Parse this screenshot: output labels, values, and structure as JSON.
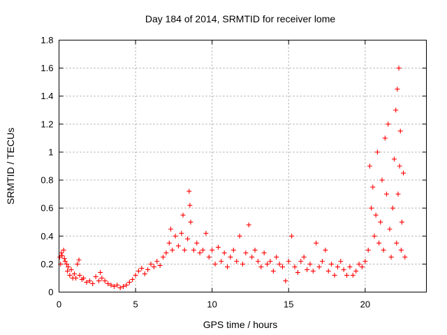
{
  "chart_data": {
    "type": "scatter",
    "title": "Day 184 of 2014, SRMTID for receiver lome",
    "xlabel": "GPS time / hours",
    "ylabel": "SRMTID / TECUs",
    "xlim": [
      0,
      24
    ],
    "ylim": [
      0,
      1.8
    ],
    "x_ticks": [
      0,
      5,
      10,
      15,
      20
    ],
    "x_tick_labels": [
      "0",
      "5",
      "10",
      "15",
      "20"
    ],
    "y_ticks": [
      0,
      0.2,
      0.4,
      0.6,
      0.8,
      1.0,
      1.2,
      1.4,
      1.6,
      1.8
    ],
    "y_tick_labels": [
      "0",
      "0.2",
      "0.4",
      "0.6",
      "0.8",
      "1",
      "1.2",
      "1.4",
      "1.6",
      "1.8"
    ],
    "grid": true,
    "marker": "plus",
    "marker_color": "#ff0000",
    "series": [
      {
        "name": "SRMTID",
        "points": [
          [
            0.05,
            0.25
          ],
          [
            0.1,
            0.2
          ],
          [
            0.15,
            0.28
          ],
          [
            0.2,
            0.26
          ],
          [
            0.3,
            0.3
          ],
          [
            0.35,
            0.24
          ],
          [
            0.4,
            0.22
          ],
          [
            0.5,
            0.2
          ],
          [
            0.55,
            0.15
          ],
          [
            0.6,
            0.18
          ],
          [
            0.7,
            0.12
          ],
          [
            0.8,
            0.16
          ],
          [
            0.9,
            0.1
          ],
          [
            1.0,
            0.13
          ],
          [
            1.1,
            0.1
          ],
          [
            1.2,
            0.2
          ],
          [
            1.3,
            0.23
          ],
          [
            1.35,
            0.12
          ],
          [
            1.5,
            0.09
          ],
          [
            1.6,
            0.1
          ],
          [
            1.8,
            0.07
          ],
          [
            2.0,
            0.08
          ],
          [
            2.2,
            0.06
          ],
          [
            2.4,
            0.11
          ],
          [
            2.6,
            0.08
          ],
          [
            2.7,
            0.14
          ],
          [
            2.8,
            0.1
          ],
          [
            3.0,
            0.08
          ],
          [
            3.2,
            0.06
          ],
          [
            3.4,
            0.05
          ],
          [
            3.6,
            0.04
          ],
          [
            3.8,
            0.05
          ],
          [
            4.0,
            0.03
          ],
          [
            4.2,
            0.04
          ],
          [
            4.4,
            0.05
          ],
          [
            4.6,
            0.07
          ],
          [
            4.8,
            0.09
          ],
          [
            5.0,
            0.12
          ],
          [
            5.2,
            0.15
          ],
          [
            5.4,
            0.17
          ],
          [
            5.6,
            0.13
          ],
          [
            5.8,
            0.16
          ],
          [
            6.0,
            0.2
          ],
          [
            6.2,
            0.18
          ],
          [
            6.4,
            0.22
          ],
          [
            6.6,
            0.19
          ],
          [
            6.8,
            0.25
          ],
          [
            7.0,
            0.28
          ],
          [
            7.2,
            0.35
          ],
          [
            7.3,
            0.45
          ],
          [
            7.4,
            0.3
          ],
          [
            7.6,
            0.4
          ],
          [
            7.8,
            0.33
          ],
          [
            8.0,
            0.42
          ],
          [
            8.1,
            0.55
          ],
          [
            8.2,
            0.3
          ],
          [
            8.4,
            0.38
          ],
          [
            8.5,
            0.72
          ],
          [
            8.55,
            0.62
          ],
          [
            8.6,
            0.5
          ],
          [
            8.8,
            0.3
          ],
          [
            9.0,
            0.35
          ],
          [
            9.2,
            0.28
          ],
          [
            9.4,
            0.3
          ],
          [
            9.6,
            0.42
          ],
          [
            9.8,
            0.25
          ],
          [
            10.0,
            0.3
          ],
          [
            10.2,
            0.2
          ],
          [
            10.4,
            0.32
          ],
          [
            10.6,
            0.22
          ],
          [
            10.8,
            0.28
          ],
          [
            11.0,
            0.18
          ],
          [
            11.2,
            0.25
          ],
          [
            11.4,
            0.3
          ],
          [
            11.6,
            0.22
          ],
          [
            11.8,
            0.4
          ],
          [
            12.0,
            0.2
          ],
          [
            12.2,
            0.28
          ],
          [
            12.4,
            0.48
          ],
          [
            12.6,
            0.25
          ],
          [
            12.8,
            0.3
          ],
          [
            13.0,
            0.22
          ],
          [
            13.2,
            0.18
          ],
          [
            13.4,
            0.28
          ],
          [
            13.6,
            0.2
          ],
          [
            13.8,
            0.22
          ],
          [
            14.0,
            0.15
          ],
          [
            14.2,
            0.25
          ],
          [
            14.4,
            0.2
          ],
          [
            14.6,
            0.18
          ],
          [
            14.8,
            0.08
          ],
          [
            15.0,
            0.22
          ],
          [
            15.2,
            0.4
          ],
          [
            15.4,
            0.18
          ],
          [
            15.6,
            0.14
          ],
          [
            15.8,
            0.22
          ],
          [
            16.0,
            0.25
          ],
          [
            16.2,
            0.16
          ],
          [
            16.4,
            0.2
          ],
          [
            16.6,
            0.15
          ],
          [
            16.8,
            0.35
          ],
          [
            17.0,
            0.18
          ],
          [
            17.2,
            0.22
          ],
          [
            17.4,
            0.3
          ],
          [
            17.6,
            0.15
          ],
          [
            17.8,
            0.2
          ],
          [
            18.0,
            0.12
          ],
          [
            18.2,
            0.18
          ],
          [
            18.4,
            0.22
          ],
          [
            18.6,
            0.16
          ],
          [
            18.8,
            0.12
          ],
          [
            19.0,
            0.18
          ],
          [
            19.2,
            0.12
          ],
          [
            19.4,
            0.15
          ],
          [
            19.6,
            0.2
          ],
          [
            19.8,
            0.18
          ],
          [
            20.0,
            0.22
          ],
          [
            20.2,
            0.3
          ],
          [
            20.3,
            0.9
          ],
          [
            20.4,
            0.6
          ],
          [
            20.5,
            0.75
          ],
          [
            20.6,
            0.4
          ],
          [
            20.7,
            0.55
          ],
          [
            20.8,
            1.0
          ],
          [
            20.9,
            0.35
          ],
          [
            21.0,
            0.5
          ],
          [
            21.1,
            0.8
          ],
          [
            21.2,
            0.3
          ],
          [
            21.3,
            1.1
          ],
          [
            21.4,
            0.7
          ],
          [
            21.5,
            1.2
          ],
          [
            21.6,
            0.45
          ],
          [
            21.7,
            0.25
          ],
          [
            21.8,
            0.6
          ],
          [
            21.9,
            0.95
          ],
          [
            22.0,
            1.3
          ],
          [
            22.05,
            0.35
          ],
          [
            22.1,
            1.45
          ],
          [
            22.15,
            0.7
          ],
          [
            22.2,
            1.6
          ],
          [
            22.25,
            0.9
          ],
          [
            22.3,
            1.15
          ],
          [
            22.35,
            0.3
          ],
          [
            22.4,
            0.5
          ],
          [
            22.5,
            0.85
          ],
          [
            22.6,
            0.25
          ]
        ]
      }
    ]
  }
}
